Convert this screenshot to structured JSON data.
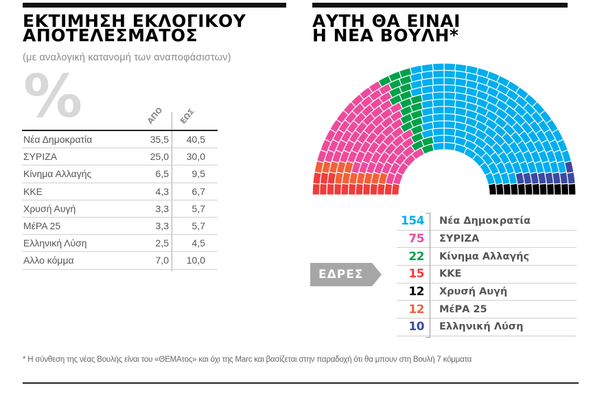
{
  "left_panel": {
    "title_line1": "ΕΚΤΙΜΗΣΗ ΕΚΛΟΓΙΚΟΥ",
    "title_line2": "ΑΠΟΤΕΛΕΣΜΑΤΟΣ",
    "subtitle": "(με αναλογική κατανομή των αναποφάσιστων)",
    "percent_symbol": "%",
    "col_from": "ΑΠΟ",
    "col_to": "ΕΩΣ",
    "rows": [
      {
        "party": "Νέα Δημοκρατία",
        "from": "35,5",
        "to": "40,5"
      },
      {
        "party": "ΣΥΡΙΖΑ",
        "from": "25,0",
        "to": "30,0"
      },
      {
        "party": "Κίνημα Αλλαγής",
        "from": "6,5",
        "to": "9,5"
      },
      {
        "party": "ΚΚΕ",
        "from": "4,3",
        "to": "6,7"
      },
      {
        "party": "Χρυσή Αυγή",
        "from": "3,3",
        "to": "5,7"
      },
      {
        "party": "ΜέΡΑ 25",
        "from": "3,3",
        "to": "5,7"
      },
      {
        "party": "Ελληνική Λύση",
        "from": "2,5",
        "to": "4,5"
      },
      {
        "party": "Αλλο κόμμα",
        "from": "7,0",
        "to": "10,0"
      }
    ]
  },
  "right_panel": {
    "title_line1": "ΑΥΤΗ ΘΑ ΕΙΝΑΙ",
    "title_line2": "Η ΝΕΑ ΒΟΥΛΗ*",
    "seats_tag": "ΕΔΡΕΣ",
    "legend": [
      {
        "seats": "154",
        "party": "Νέα Δημοκρατία",
        "color": "#00aeef"
      },
      {
        "seats": "75",
        "party": "ΣΥΡΙΖΑ",
        "color": "#ee4b9c"
      },
      {
        "seats": "22",
        "party": "Κίνημα Αλλαγής",
        "color": "#00a14b"
      },
      {
        "seats": "15",
        "party": "ΚΚΕ",
        "color": "#ef3d3b"
      },
      {
        "seats": "12",
        "party": "Χρυσή Αυγή",
        "color": "#000000"
      },
      {
        "seats": "12",
        "party": "ΜέΡΑ 25",
        "color": "#f26139"
      },
      {
        "seats": "10",
        "party": "Ελληνική Λύση",
        "color": "#3b4a9e"
      }
    ]
  },
  "footnote": "* Η σύνθεση της νέας Βουλής είναι του «ΘΕΜΑτος» και όχι της Marc και βασίζεται στην παραδοχή ότι θα μπουν στη Βουλή 7 κόμματα",
  "chart_data": [
    {
      "type": "table",
      "title": "ΕΚΤΙΜΗΣΗ ΕΚΛΟΓΙΚΟΥ ΑΠΟΤΕΛΕΣΜΑΤΟΣ",
      "subtitle": "(με αναλογική κατανομή των αναποφάσιστων)",
      "unit": "%",
      "columns": [
        "ΑΠΟ",
        "ΕΩΣ"
      ],
      "categories": [
        "Νέα Δημοκρατία",
        "ΣΥΡΙΖΑ",
        "Κίνημα Αλλαγής",
        "ΚΚΕ",
        "Χρυσή Αυγή",
        "ΜέΡΑ 25",
        "Ελληνική Λύση",
        "Αλλο κόμμα"
      ],
      "series": [
        {
          "name": "ΑΠΟ",
          "values": [
            35.5,
            25.0,
            6.5,
            4.3,
            3.3,
            3.3,
            2.5,
            7.0
          ]
        },
        {
          "name": "ΕΩΣ",
          "values": [
            40.5,
            30.0,
            9.5,
            6.7,
            5.7,
            5.7,
            4.5,
            10.0
          ]
        }
      ]
    },
    {
      "type": "parliament",
      "title": "ΑΥΤΗ ΘΑ ΕΙΝΑΙ Η ΝΕΑ ΒΟΥΛΗ*",
      "total_seats": 300,
      "rows": 12,
      "categories": [
        "Νέα Δημοκρατία",
        "ΣΥΡΙΖΑ",
        "Κίνημα Αλλαγής",
        "ΚΚΕ",
        "Χρυσή Αυγή",
        "ΜέΡΑ 25",
        "Ελληνική Λύση"
      ],
      "values": [
        154,
        75,
        22,
        15,
        12,
        12,
        10
      ],
      "colors": [
        "#00aeef",
        "#ee4b9c",
        "#00a14b",
        "#ef3d3b",
        "#000000",
        "#f26139",
        "#3b4a9e"
      ],
      "order_left_to_right": [
        "ΚΚΕ",
        "ΜέΡΑ 25",
        "ΣΥΡΙΖΑ",
        "Κίνημα Αλλαγής",
        "Νέα Δημοκρατία",
        "Ελληνική Λύση",
        "Χρυσή Αυγή"
      ],
      "legend_label": "ΕΔΡΕΣ"
    }
  ]
}
